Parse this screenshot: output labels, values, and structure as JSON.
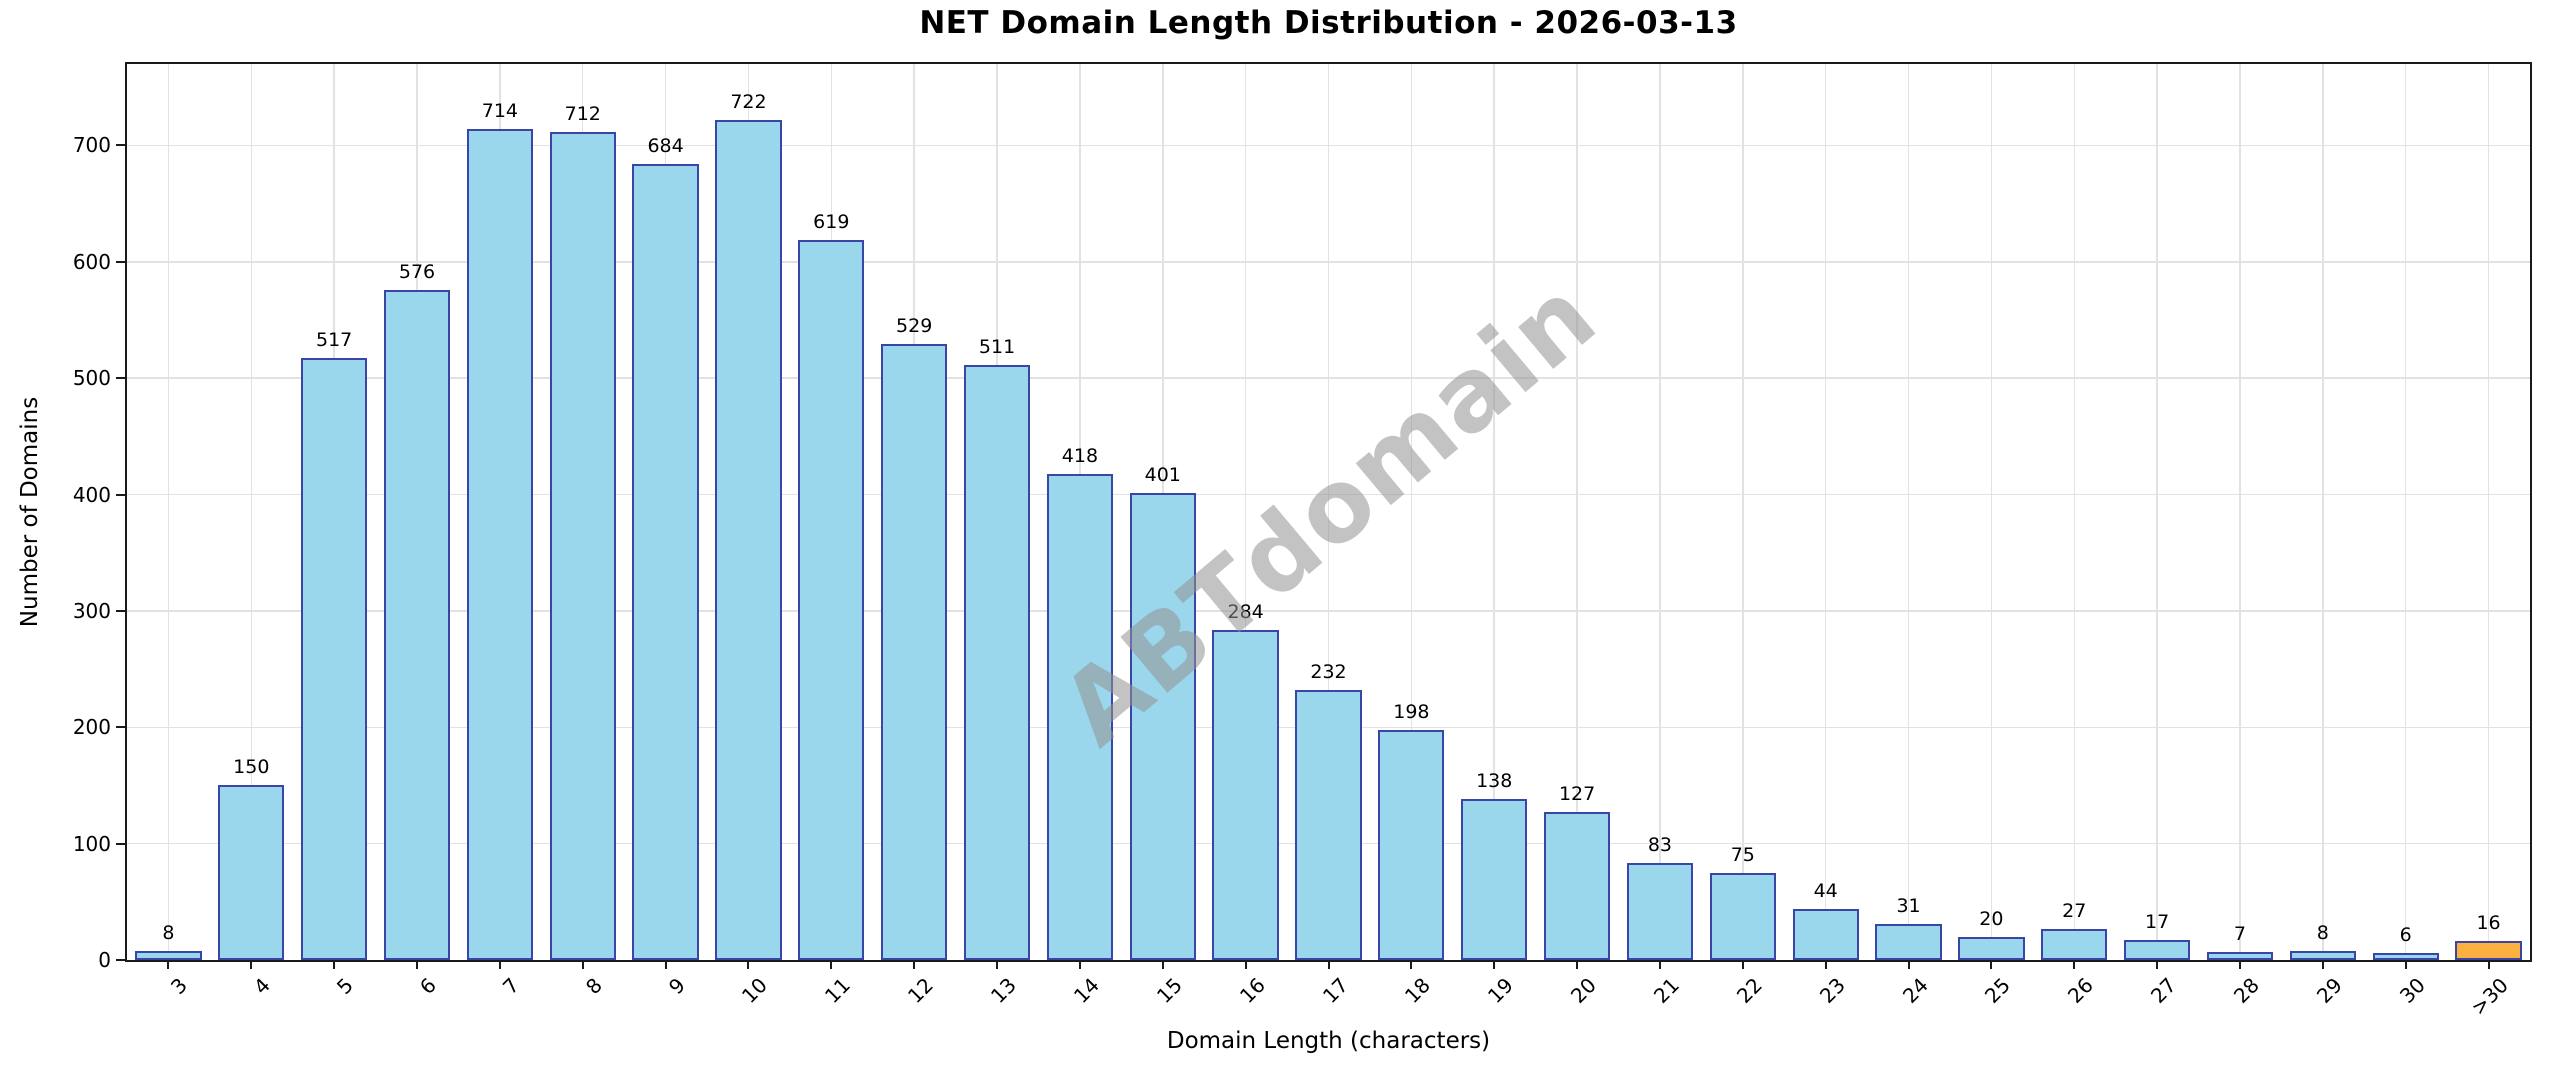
{
  "chart_data": {
    "type": "bar",
    "title": "NET Domain Length Distribution - 2026-03-13",
    "xlabel": "Domain Length (characters)",
    "ylabel": "Number of Domains",
    "categories": [
      "3",
      "4",
      "5",
      "6",
      "7",
      "8",
      "9",
      "10",
      "11",
      "12",
      "13",
      "14",
      "15",
      "16",
      "17",
      "18",
      "19",
      "20",
      "21",
      "22",
      "23",
      "24",
      "25",
      "26",
      "27",
      "28",
      "29",
      "30",
      ">30"
    ],
    "values": [
      8,
      150,
      517,
      576,
      714,
      712,
      684,
      722,
      619,
      529,
      511,
      418,
      401,
      284,
      232,
      198,
      138,
      127,
      83,
      75,
      44,
      31,
      20,
      27,
      17,
      7,
      8,
      6,
      16
    ],
    "yticks": [
      0,
      100,
      200,
      300,
      400,
      500,
      600,
      700
    ],
    "ylim": [
      0,
      770
    ],
    "grid": true,
    "legend": "none",
    "bar_color": "#9BD7EC",
    "bar_edge_color": "#3A45A8",
    "highlight_category": ">30",
    "highlight_color": "#FBB040",
    "grid_color": "#E2E2E2",
    "watermark": "ABTdomain"
  }
}
